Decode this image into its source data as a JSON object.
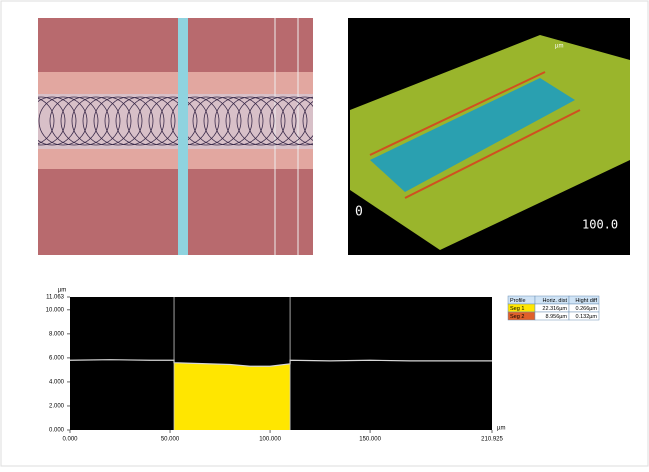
{
  "chart_data": {
    "type": "line",
    "x_unit": "µm",
    "y_unit": "µm",
    "xlim": [
      0,
      210.925
    ],
    "xticks": [
      {
        "value": 0,
        "label": "0.000"
      },
      {
        "value": 50,
        "label": "50.000"
      },
      {
        "value": 100,
        "label": "100.000"
      },
      {
        "value": 150,
        "label": "150.000"
      },
      {
        "value": 210.925,
        "label": "210.925"
      }
    ],
    "ylim": [
      0,
      11.063
    ],
    "yticks": [
      {
        "value": 0,
        "label": "0.000"
      },
      {
        "value": 2,
        "label": "2.000"
      },
      {
        "value": 4,
        "label": "4.000"
      },
      {
        "value": 6,
        "label": "6.000"
      },
      {
        "value": 8,
        "label": "8.000"
      },
      {
        "value": 10,
        "label": "10.000"
      },
      {
        "value": 11.063,
        "label": "11.063"
      }
    ],
    "cursors": [
      52,
      110
    ],
    "series": [
      {
        "color": "#d8d8d8",
        "x": [
          0,
          20,
          40,
          52,
          52,
          60,
          70,
          80,
          90,
          100,
          110,
          110,
          130,
          150,
          170,
          190,
          210.925
        ],
        "values": [
          5.8,
          5.85,
          5.8,
          5.8,
          5.6,
          5.55,
          5.5,
          5.45,
          5.3,
          5.3,
          5.5,
          5.8,
          5.75,
          5.8,
          5.75,
          5.75,
          5.75
        ]
      },
      {
        "type": "area",
        "color": "#ffe600",
        "x": [
          52,
          60,
          70,
          80,
          90,
          100,
          110
        ],
        "values": [
          5.6,
          5.55,
          5.5,
          5.45,
          5.3,
          5.3,
          5.5
        ]
      }
    ]
  },
  "render3d": {
    "origin": "0",
    "end": "100.0",
    "unit": "µm"
  },
  "table": {
    "header": [
      "Profile",
      "Horiz. dist",
      "Hight diff"
    ],
    "rows": [
      [
        "Seg 1",
        "22.316µm",
        "0.266µm"
      ],
      [
        "Seg 2",
        "8.956µm",
        "0.132µm"
      ]
    ]
  }
}
